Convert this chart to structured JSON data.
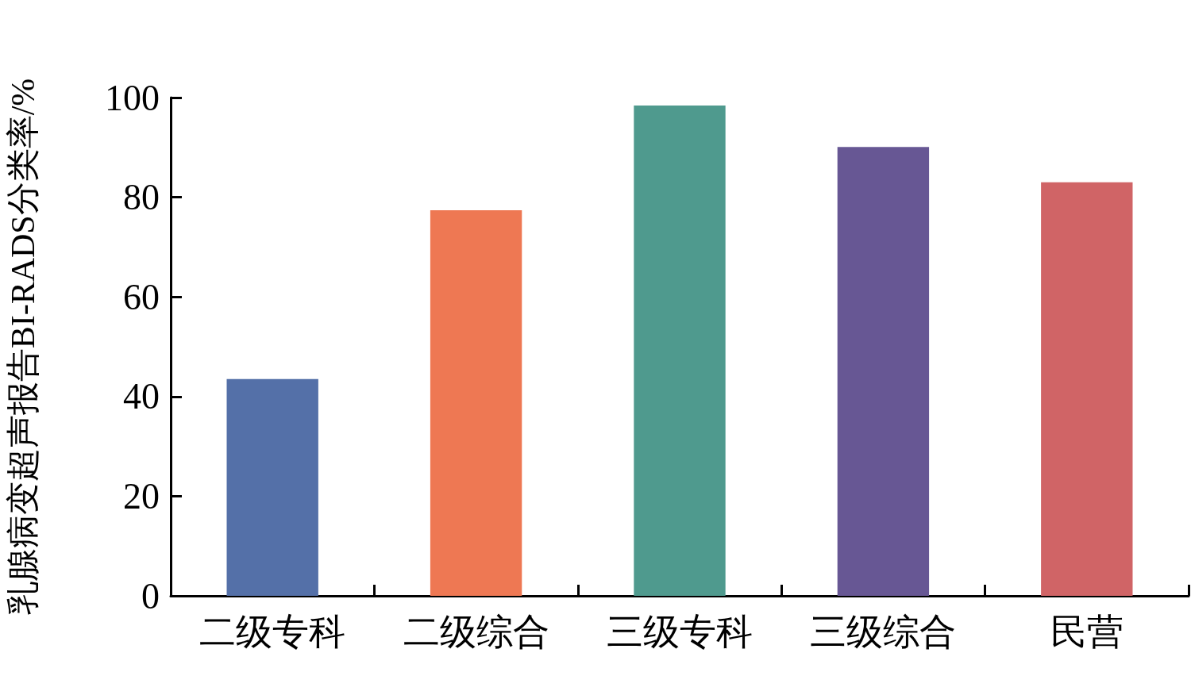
{
  "chart_data": {
    "type": "bar",
    "ylabel": "乳腺病变超声报告BI-RADS分类率/%",
    "categories": [
      "二级专科",
      "二级综合",
      "三级专科",
      "三级综合",
      "民营"
    ],
    "values": [
      43.5,
      77.4,
      98.4,
      90.1,
      83.0
    ],
    "colors": [
      "#5470a8",
      "#ee7853",
      "#4f9a8e",
      "#675794",
      "#d06466"
    ],
    "ylim": [
      0,
      100
    ],
    "yticks": [
      0,
      20,
      40,
      60,
      80,
      100
    ],
    "grid": false
  }
}
